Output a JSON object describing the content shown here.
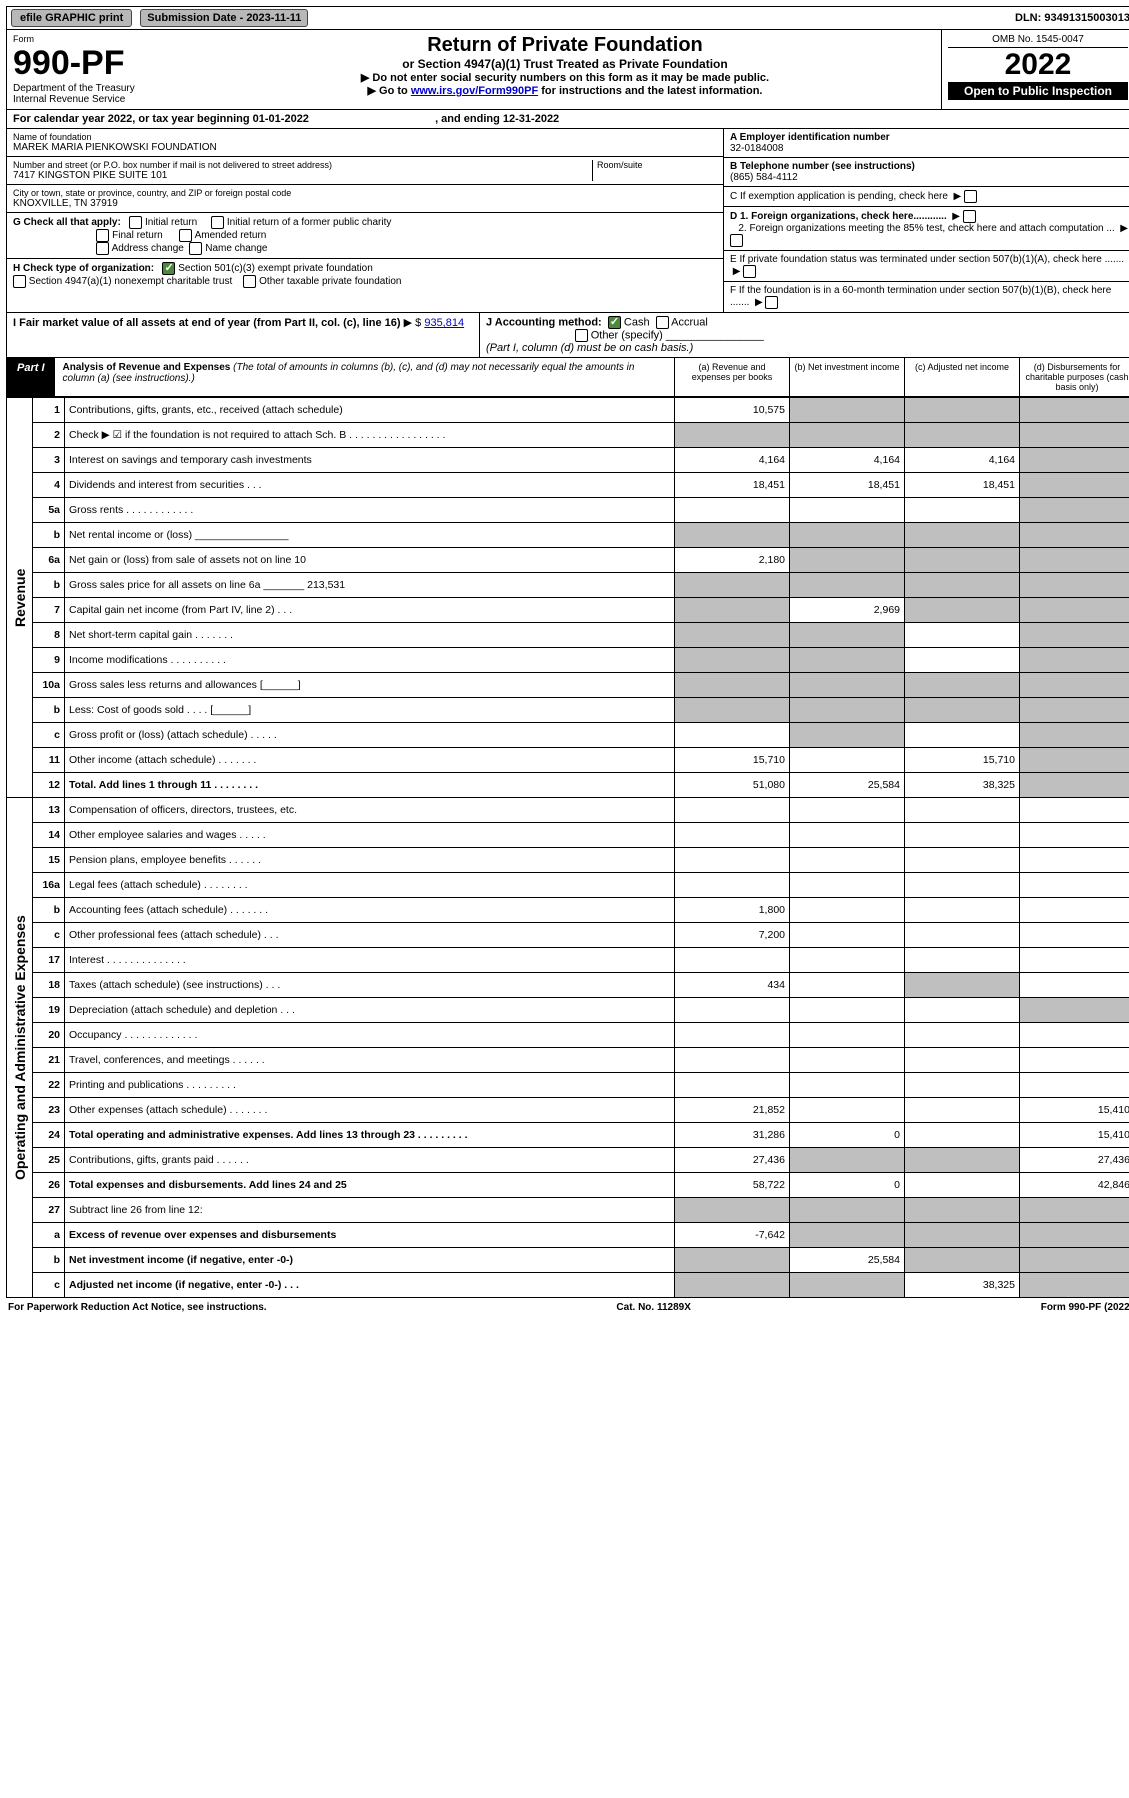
{
  "topbar": {
    "efile": "efile GRAPHIC print",
    "submission_label": "Submission Date - 2023-11-11",
    "dln": "DLN: 93491315003013"
  },
  "header": {
    "form_label": "Form",
    "form_no": "990-PF",
    "dept": "Department of the Treasury",
    "irs": "Internal Revenue Service",
    "title": "Return of Private Foundation",
    "subtitle": "or Section 4947(a)(1) Trust Treated as Private Foundation",
    "instr1": "▶ Do not enter social security numbers on this form as it may be made public.",
    "instr2_pre": "▶ Go to ",
    "instr2_link": "www.irs.gov/Form990PF",
    "instr2_post": " for instructions and the latest information.",
    "omb": "OMB No. 1545-0047",
    "year": "2022",
    "open": "Open to Public Inspection"
  },
  "cal": {
    "text_pre": "For calendar year 2022, or tax year beginning ",
    "begin": "01-01-2022",
    "text_mid": ", and ending ",
    "end": "12-31-2022"
  },
  "info": {
    "name_label": "Name of foundation",
    "name": "MAREK MARIA PIENKOWSKI FOUNDATION",
    "addr_label": "Number and street (or P.O. box number if mail is not delivered to street address)",
    "addr": "7417 KINGSTON PIKE SUITE 101",
    "room_label": "Room/suite",
    "city_label": "City or town, state or province, country, and ZIP or foreign postal code",
    "city": "KNOXVILLE, TN  37919",
    "a_label": "A Employer identification number",
    "a_val": "32-0184008",
    "b_label": "B Telephone number (see instructions)",
    "b_val": "(865) 584-4112",
    "c_label": "C If exemption application is pending, check here",
    "d1": "D 1. Foreign organizations, check here............",
    "d2": "2. Foreign organizations meeting the 85% test, check here and attach computation ...",
    "e": "E  If private foundation status was terminated under section 507(b)(1)(A), check here .......",
    "f": "F  If the foundation is in a 60-month termination under section 507(b)(1)(B), check here .......",
    "g_label": "G Check all that apply:",
    "g_opts": [
      "Initial return",
      "Final return",
      "Address change",
      "Initial return of a former public charity",
      "Amended return",
      "Name change"
    ],
    "h_label": "H Check type of organization:",
    "h1": "Section 501(c)(3) exempt private foundation",
    "h2": "Section 4947(a)(1) nonexempt charitable trust",
    "h3": "Other taxable private foundation",
    "i_label": "I Fair market value of all assets at end of year (from Part II, col. (c), line 16)",
    "i_val": "935,814",
    "j_label": "J Accounting method:",
    "j_cash": "Cash",
    "j_accrual": "Accrual",
    "j_other": "Other (specify)",
    "j_note": "(Part I, column (d) must be on cash basis.)"
  },
  "part1": {
    "label": "Part I",
    "title": "Analysis of Revenue and Expenses",
    "note": " (The total of amounts in columns (b), (c), and (d) may not necessarily equal the amounts in column (a) (see instructions).)",
    "col_a": "(a)  Revenue and expenses per books",
    "col_b": "(b)  Net investment income",
    "col_c": "(c)  Adjusted net income",
    "col_d": "(d)  Disbursements for charitable purposes (cash basis only)"
  },
  "section_labels": {
    "revenue": "Revenue",
    "opexp": "Operating and Administrative Expenses"
  },
  "rows": [
    {
      "n": "1",
      "desc": "Contributions, gifts, grants, etc., received (attach schedule)",
      "a": "10,575",
      "b": "",
      "c": "",
      "d": "",
      "grey": [
        "b",
        "c",
        "d"
      ]
    },
    {
      "n": "2",
      "desc": "Check ▶ ☑ if the foundation is not required to attach Sch. B   .  .  .  .  .  .  .  .  .  .  .  .  .  .  .  .  .",
      "a": "",
      "b": "",
      "c": "",
      "d": "",
      "grey": [
        "a",
        "b",
        "c",
        "d"
      ]
    },
    {
      "n": "3",
      "desc": "Interest on savings and temporary cash investments",
      "a": "4,164",
      "b": "4,164",
      "c": "4,164",
      "d": "",
      "grey": [
        "d"
      ]
    },
    {
      "n": "4",
      "desc": "Dividends and interest from securities    .    .    .",
      "a": "18,451",
      "b": "18,451",
      "c": "18,451",
      "d": "",
      "grey": [
        "d"
      ]
    },
    {
      "n": "5a",
      "desc": "Gross rents    .   .   .   .   .   .   .   .   .   .   .   .",
      "a": "",
      "b": "",
      "c": "",
      "d": "",
      "grey": [
        "d"
      ]
    },
    {
      "n": "b",
      "desc": "Net rental income or (loss)  ________________",
      "a": "",
      "b": "",
      "c": "",
      "d": "",
      "grey": [
        "a",
        "b",
        "c",
        "d"
      ]
    },
    {
      "n": "6a",
      "desc": "Net gain or (loss) from sale of assets not on line 10",
      "a": "2,180",
      "b": "",
      "c": "",
      "d": "",
      "grey": [
        "b",
        "c",
        "d"
      ]
    },
    {
      "n": "b",
      "desc": "Gross sales price for all assets on line 6a _______ 213,531",
      "a": "",
      "b": "",
      "c": "",
      "d": "",
      "grey": [
        "a",
        "b",
        "c",
        "d"
      ]
    },
    {
      "n": "7",
      "desc": "Capital gain net income (from Part IV, line 2)    .    .    .",
      "a": "",
      "b": "2,969",
      "c": "",
      "d": "",
      "grey": [
        "a",
        "c",
        "d"
      ]
    },
    {
      "n": "8",
      "desc": "Net short-term capital gain   .   .   .   .   .   .   .",
      "a": "",
      "b": "",
      "c": "",
      "d": "",
      "grey": [
        "a",
        "b",
        "d"
      ]
    },
    {
      "n": "9",
      "desc": "Income modifications  .   .   .   .   .   .   .   .   .   .",
      "a": "",
      "b": "",
      "c": "",
      "d": "",
      "grey": [
        "a",
        "b",
        "d"
      ]
    },
    {
      "n": "10a",
      "desc": "Gross sales less returns and allowances  [______]",
      "a": "",
      "b": "",
      "c": "",
      "d": "",
      "grey": [
        "a",
        "b",
        "c",
        "d"
      ]
    },
    {
      "n": "b",
      "desc": "Less: Cost of goods sold     .    .    .    .   [______]",
      "a": "",
      "b": "",
      "c": "",
      "d": "",
      "grey": [
        "a",
        "b",
        "c",
        "d"
      ]
    },
    {
      "n": "c",
      "desc": "Gross profit or (loss) (attach schedule)    .   .   .   .   .",
      "a": "",
      "b": "",
      "c": "",
      "d": "",
      "grey": [
        "b",
        "d"
      ]
    },
    {
      "n": "11",
      "desc": "Other income (attach schedule)    .   .   .   .   .   .   .",
      "a": "15,710",
      "b": "",
      "c": "15,710",
      "d": "",
      "grey": [
        "d"
      ]
    },
    {
      "n": "12",
      "desc": "Total. Add lines 1 through 11   .   .   .   .   .   .   .   .",
      "a": "51,080",
      "b": "25,584",
      "c": "38,325",
      "d": "",
      "bold": true,
      "grey": [
        "d"
      ]
    },
    {
      "n": "13",
      "desc": "Compensation of officers, directors, trustees, etc.",
      "a": "",
      "b": "",
      "c": "",
      "d": ""
    },
    {
      "n": "14",
      "desc": "Other employee salaries and wages   .   .   .   .   .",
      "a": "",
      "b": "",
      "c": "",
      "d": ""
    },
    {
      "n": "15",
      "desc": "Pension plans, employee benefits  .   .   .   .   .   .",
      "a": "",
      "b": "",
      "c": "",
      "d": ""
    },
    {
      "n": "16a",
      "desc": "Legal fees (attach schedule)  .   .   .   .   .   .   .   .",
      "a": "",
      "b": "",
      "c": "",
      "d": ""
    },
    {
      "n": "b",
      "desc": "Accounting fees (attach schedule)  .   .   .   .   .   .   .",
      "a": "1,800",
      "b": "",
      "c": "",
      "d": ""
    },
    {
      "n": "c",
      "desc": "Other professional fees (attach schedule)    .   .   .",
      "a": "7,200",
      "b": "",
      "c": "",
      "d": ""
    },
    {
      "n": "17",
      "desc": "Interest   .   .   .   .   .   .   .   .   .   .   .   .   .   .",
      "a": "",
      "b": "",
      "c": "",
      "d": ""
    },
    {
      "n": "18",
      "desc": "Taxes (attach schedule) (see instructions)    .   .   .",
      "a": "434",
      "b": "",
      "c": "",
      "d": "",
      "grey": [
        "c"
      ]
    },
    {
      "n": "19",
      "desc": "Depreciation (attach schedule) and depletion    .   .   .",
      "a": "",
      "b": "",
      "c": "",
      "d": "",
      "grey": [
        "d"
      ]
    },
    {
      "n": "20",
      "desc": "Occupancy  .   .   .   .   .   .   .   .   .   .   .   .   .",
      "a": "",
      "b": "",
      "c": "",
      "d": ""
    },
    {
      "n": "21",
      "desc": "Travel, conferences, and meetings  .   .   .   .   .   .",
      "a": "",
      "b": "",
      "c": "",
      "d": ""
    },
    {
      "n": "22",
      "desc": "Printing and publications  .   .   .   .   .   .   .   .   .",
      "a": "",
      "b": "",
      "c": "",
      "d": ""
    },
    {
      "n": "23",
      "desc": "Other expenses (attach schedule)  .   .   .   .   .   .   .",
      "a": "21,852",
      "b": "",
      "c": "",
      "d": "15,410"
    },
    {
      "n": "24",
      "desc": "Total operating and administrative expenses. Add lines 13 through 23   .   .   .   .   .   .   .   .   .",
      "a": "31,286",
      "b": "0",
      "c": "",
      "d": "15,410",
      "bold": true
    },
    {
      "n": "25",
      "desc": "Contributions, gifts, grants paid    .   .   .   .   .   .",
      "a": "27,436",
      "b": "",
      "c": "",
      "d": "27,436",
      "grey": [
        "b",
        "c"
      ]
    },
    {
      "n": "26",
      "desc": "Total expenses and disbursements. Add lines 24 and 25",
      "a": "58,722",
      "b": "0",
      "c": "",
      "d": "42,846",
      "bold": true
    },
    {
      "n": "27",
      "desc": "Subtract line 26 from line 12:",
      "a": "",
      "b": "",
      "c": "",
      "d": "",
      "grey": [
        "a",
        "b",
        "c",
        "d"
      ]
    },
    {
      "n": "a",
      "desc": "Excess of revenue over expenses and disbursements",
      "a": "-7,642",
      "b": "",
      "c": "",
      "d": "",
      "bold": true,
      "grey": [
        "b",
        "c",
        "d"
      ]
    },
    {
      "n": "b",
      "desc": "Net investment income (if negative, enter -0-)",
      "a": "",
      "b": "25,584",
      "c": "",
      "d": "",
      "bold": true,
      "grey": [
        "a",
        "c",
        "d"
      ]
    },
    {
      "n": "c",
      "desc": "Adjusted net income (if negative, enter -0-)    .   .   .",
      "a": "",
      "b": "",
      "c": "38,325",
      "d": "",
      "bold": true,
      "grey": [
        "a",
        "b",
        "d"
      ]
    }
  ],
  "footer": {
    "left": "For Paperwork Reduction Act Notice, see instructions.",
    "mid": "Cat. No. 11289X",
    "right": "Form 990-PF (2022)"
  },
  "colors": {
    "grey_cell": "#bfbfbf",
    "check_green": "#4a8a3a",
    "button_grey": "#b8b8b8",
    "link": "#0000cc"
  }
}
